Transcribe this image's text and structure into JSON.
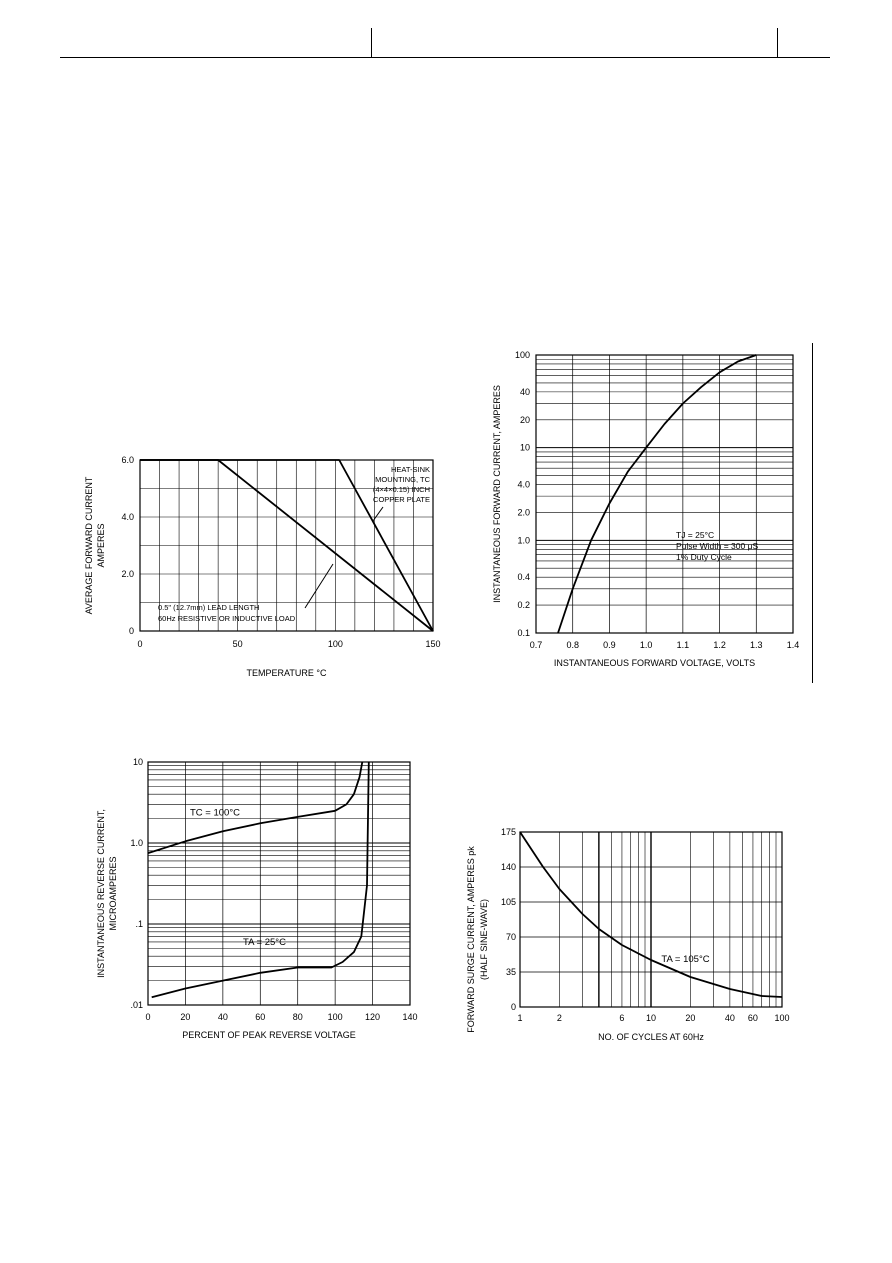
{
  "chart_data": [
    {
      "type": "line",
      "xlabel": "TEMPERATURE °C",
      "ylabel_lines": [
        "AVERAGE FORWARD CURRENT",
        "AMPERES"
      ],
      "xlim": [
        0,
        150
      ],
      "ylim": [
        0,
        6
      ],
      "x_ticks": [
        0,
        50,
        100,
        150
      ],
      "x_tick_labels": [
        "0",
        "50",
        "100",
        "150"
      ],
      "y_ticks": [
        0,
        2,
        4,
        6
      ],
      "y_tick_labels": [
        "0",
        "2.0",
        "4.0",
        "6.0"
      ],
      "grid": true,
      "series": [
        {
          "x": [
            0,
            40,
            150
          ],
          "y": [
            6.0,
            6.0,
            0.0
          ]
        },
        {
          "x": [
            0,
            102,
            150
          ],
          "y": [
            6.0,
            6.0,
            0.0
          ]
        }
      ],
      "annotations": {
        "heat_sink": [
          "HEAT-SINK",
          "MOUNTING, TC",
          "(4×4×0.15) INCH",
          "COPPER PLATE"
        ],
        "lead": [
          "0.5\" (12.7mm) LEAD LENGTH",
          "60Hz RESISTIVE OR INDUCTIVE LOAD"
        ]
      }
    },
    {
      "type": "line",
      "xlabel": "INSTANTANEOUS FORWARD VOLTAGE, VOLTS",
      "ylabel": "INSTANTANEOUS FORWARD CURRENT, AMPERES",
      "xlim": [
        0.7,
        1.4
      ],
      "ylim": [
        0.1,
        100
      ],
      "yscale": "log",
      "x_ticks": [
        0.7,
        0.8,
        0.9,
        1.0,
        1.1,
        1.2,
        1.3,
        1.4
      ],
      "x_tick_labels": [
        "0.7",
        "0.8",
        "0.9",
        "1.0",
        "1.1",
        "1.2",
        "1.3",
        "1.4"
      ],
      "y_ticks": [
        0.1,
        0.2,
        0.4,
        1,
        2,
        4,
        10,
        20,
        40,
        100
      ],
      "y_tick_labels": [
        "0.1",
        "0.2",
        "0.4",
        "1.0",
        "2.0",
        "4.0",
        "10",
        "20",
        "40",
        "100"
      ],
      "grid": true,
      "series": [
        {
          "x": [
            0.76,
            0.8,
            0.85,
            0.9,
            0.95,
            1.0,
            1.05,
            1.1,
            1.15,
            1.2,
            1.25,
            1.3
          ],
          "y": [
            0.1,
            0.3,
            1.0,
            2.5,
            5.5,
            10,
            18,
            30,
            45,
            65,
            85,
            100
          ]
        }
      ],
      "annotations": {
        "conditions": [
          "TJ = 25°C",
          "Pulse Width = 300 μS",
          "1% Duty Cycle"
        ]
      }
    },
    {
      "type": "line",
      "xlabel": "PERCENT OF PEAK REVERSE VOLTAGE",
      "ylabel_lines": [
        "INSTANTANEOUS REVERSE CURRENT,",
        "MICROAMPERES"
      ],
      "xlim": [
        0,
        140
      ],
      "ylim": [
        0.01,
        10
      ],
      "yscale": "log",
      "x_ticks": [
        0,
        20,
        40,
        60,
        80,
        100,
        120,
        140
      ],
      "x_tick_labels": [
        "0",
        "20",
        "40",
        "60",
        "80",
        "100",
        "120",
        "140"
      ],
      "y_ticks": [
        0.01,
        0.1,
        1,
        10
      ],
      "y_tick_labels": [
        ".01",
        ".1",
        "1.0",
        "10"
      ],
      "grid": true,
      "series": [
        {
          "name": "TC = 100°C",
          "x": [
            0,
            20,
            40,
            60,
            80,
            100,
            106,
            110,
            113,
            114.5
          ],
          "y": [
            0.75,
            1.05,
            1.4,
            1.75,
            2.1,
            2.5,
            3.0,
            4.0,
            6.5,
            10
          ]
        },
        {
          "name": "TA = 25°C",
          "x": [
            2,
            20,
            40,
            60,
            80,
            98,
            104,
            110,
            114,
            117,
            118
          ],
          "y": [
            0.0125,
            0.016,
            0.02,
            0.025,
            0.029,
            0.029,
            0.034,
            0.045,
            0.07,
            0.3,
            10
          ]
        }
      ]
    },
    {
      "type": "line",
      "xlabel": "NO. OF CYCLES AT 60Hz",
      "ylabel_lines": [
        "FORWARD SURGE CURRENT, AMPERES pk",
        "(HALF SINE-WAVE)"
      ],
      "xlim": [
        1,
        100
      ],
      "ylim": [
        0,
        175
      ],
      "xscale": "log",
      "x_ticks": [
        1,
        2,
        6,
        10,
        20,
        40,
        60,
        100
      ],
      "x_tick_labels": [
        "1",
        "2",
        "6",
        "10",
        "20",
        "40",
        "60",
        "100"
      ],
      "y_ticks": [
        0,
        35,
        70,
        105,
        140,
        175
      ],
      "y_tick_labels": [
        "0",
        "35",
        "70",
        "105",
        "140",
        "175"
      ],
      "grid": true,
      "series": [
        {
          "name": "TA = 105°C",
          "x": [
            1,
            1.5,
            2,
            3,
            4,
            6,
            10,
            20,
            40,
            70,
            100
          ],
          "y": [
            175,
            140,
            118,
            93,
            78,
            62,
            47,
            30,
            18,
            11,
            10
          ]
        }
      ]
    }
  ]
}
